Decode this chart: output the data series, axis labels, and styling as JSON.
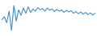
{
  "values": [
    4.5,
    5.2,
    3.8,
    6.5,
    2.0,
    7.8,
    4.2,
    6.8,
    5.5,
    7.2,
    6.0,
    7.5,
    6.2,
    7.0,
    6.5,
    7.3,
    6.8,
    7.1,
    6.5,
    7.2,
    6.7,
    7.0,
    6.4,
    6.9,
    6.5,
    6.8,
    6.2,
    6.7,
    6.3,
    6.6,
    6.0,
    6.4,
    5.9,
    6.3,
    5.8,
    6.2,
    5.7,
    6.1,
    5.6,
    6.0
  ],
  "line_color": "#4090c8",
  "background_color": "#ffffff",
  "linewidth": 0.8
}
